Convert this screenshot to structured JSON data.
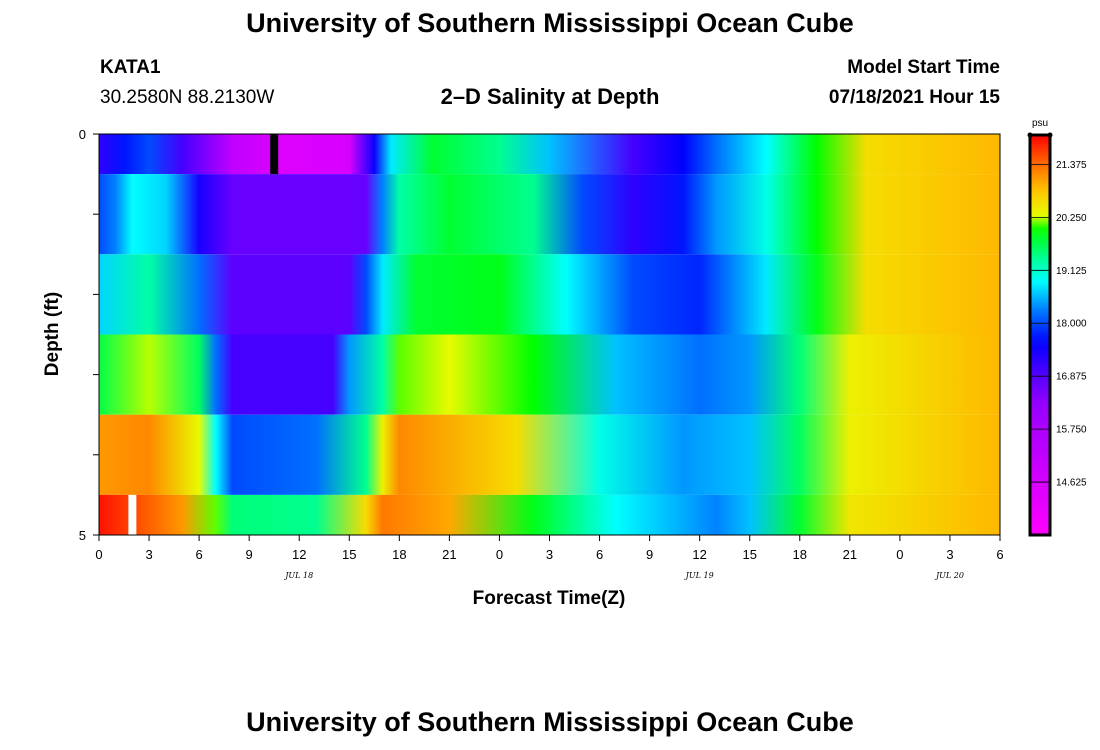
{
  "header": {
    "title": "University of Southern Mississippi Ocean Cube",
    "station": "KATA1",
    "coords": "30.2580N  88.2130W",
    "subtitle": "2–D Salinity at Depth",
    "model_label": "Model Start Time",
    "model_time": "07/18/2021 Hour 15"
  },
  "footer": {
    "title": "University of Southern Mississippi Ocean Cube"
  },
  "chart_data": {
    "type": "heatmap",
    "xlabel": "Forecast Time(Z)",
    "ylabel": "Depth (ft)",
    "x_tick_labels": [
      "0",
      "3",
      "6",
      "9",
      "12",
      "15",
      "18",
      "21",
      "0",
      "3",
      "6",
      "9",
      "12",
      "15",
      "18",
      "21",
      "0",
      "3",
      "6"
    ],
    "x_date_labels": [
      {
        "label": "JUL 18",
        "hour": 12
      },
      {
        "label": "JUL 19",
        "hour": 36
      },
      {
        "label": "JUL 20",
        "hour": 51
      }
    ],
    "x_range_hours": [
      0,
      54
    ],
    "y_tick_labels": [
      "0",
      "5"
    ],
    "ylim": [
      0,
      5
    ],
    "y_levels": 5,
    "colorbar": {
      "unit": "psu",
      "min": 13.5,
      "max": 22.0,
      "tick_values": [
        "21.375",
        "20.250",
        "19.125",
        "18.000",
        "16.875",
        "15.750",
        "14.625"
      ]
    },
    "band_bounds_ft": [
      0,
      0.5,
      1.5,
      2.5,
      3.5,
      4.5,
      5
    ],
    "bands": [
      {
        "depth_ft": 0,
        "knots": [
          [
            0,
            17.2
          ],
          [
            1.5,
            17.7
          ],
          [
            3,
            18.0
          ],
          [
            5,
            17.0
          ],
          [
            8,
            15.2
          ],
          [
            11,
            14.4
          ],
          [
            15,
            14.6
          ],
          [
            16.5,
            17.5
          ],
          [
            17.5,
            18.8
          ],
          [
            20,
            19.8
          ],
          [
            24,
            19.4
          ],
          [
            27,
            18.6
          ],
          [
            32,
            17.0
          ],
          [
            35,
            17.6
          ],
          [
            37,
            18.2
          ],
          [
            40,
            18.9
          ],
          [
            43,
            20.0
          ],
          [
            46,
            20.6
          ],
          [
            54,
            20.9
          ]
        ]
      },
      {
        "depth_ft": 1,
        "knots": [
          [
            0,
            18.0
          ],
          [
            1,
            18.3
          ],
          [
            2,
            18.9
          ],
          [
            4,
            18.7
          ],
          [
            6,
            17.4
          ],
          [
            8,
            16.7
          ],
          [
            16,
            16.7
          ],
          [
            17,
            18.3
          ],
          [
            18,
            19.3
          ],
          [
            21,
            19.8
          ],
          [
            26,
            19.4
          ],
          [
            29,
            18.0
          ],
          [
            32,
            17.2
          ],
          [
            35,
            17.7
          ],
          [
            37,
            18.4
          ],
          [
            40,
            19.0
          ],
          [
            43,
            20.0
          ],
          [
            46,
            20.6
          ],
          [
            54,
            20.9
          ]
        ]
      },
      {
        "depth_ft": 2,
        "knots": [
          [
            0,
            18.7
          ],
          [
            3,
            19.3
          ],
          [
            6,
            18.2
          ],
          [
            8,
            16.8
          ],
          [
            15,
            16.8
          ],
          [
            16,
            18.0
          ],
          [
            17,
            18.8
          ],
          [
            19,
            19.8
          ],
          [
            24,
            19.9
          ],
          [
            28,
            18.9
          ],
          [
            32,
            18.0
          ],
          [
            36,
            17.8
          ],
          [
            40,
            18.8
          ],
          [
            43,
            19.9
          ],
          [
            46,
            20.6
          ],
          [
            54,
            20.9
          ]
        ]
      },
      {
        "depth_ft": 3,
        "knots": [
          [
            0,
            19.7
          ],
          [
            3,
            20.2
          ],
          [
            6,
            19.6
          ],
          [
            7,
            18.2
          ],
          [
            8,
            17.0
          ],
          [
            14,
            17.0
          ],
          [
            15,
            18.4
          ],
          [
            17,
            19.3
          ],
          [
            18,
            20.1
          ],
          [
            21,
            20.3
          ],
          [
            26,
            20.0
          ],
          [
            31,
            18.6
          ],
          [
            36,
            18.2
          ],
          [
            39,
            18.4
          ],
          [
            42,
            19.5
          ],
          [
            45,
            20.4
          ],
          [
            54,
            20.9
          ]
        ]
      },
      {
        "depth_ft": 4,
        "knots": [
          [
            0,
            21.1
          ],
          [
            3,
            21.2
          ],
          [
            6,
            20.3
          ],
          [
            7,
            18.9
          ],
          [
            8,
            18.0
          ],
          [
            13,
            18.2
          ],
          [
            16,
            19.4
          ],
          [
            17,
            20.4
          ],
          [
            18,
            21.2
          ],
          [
            25,
            20.6
          ],
          [
            30,
            19.0
          ],
          [
            35,
            18.4
          ],
          [
            39,
            18.6
          ],
          [
            42,
            19.6
          ],
          [
            45,
            20.4
          ],
          [
            54,
            20.9
          ]
        ]
      },
      {
        "depth_ft": 5,
        "knots": [
          [
            0,
            21.9
          ],
          [
            2,
            21.6
          ],
          [
            5,
            21.1
          ],
          [
            7,
            20.1
          ],
          [
            8,
            19.5
          ],
          [
            13,
            19.4
          ],
          [
            16,
            20.6
          ],
          [
            17,
            21.3
          ],
          [
            21,
            21.0
          ],
          [
            26,
            19.9
          ],
          [
            31,
            18.9
          ],
          [
            37,
            18.3
          ],
          [
            39,
            18.6
          ],
          [
            42,
            19.8
          ],
          [
            45,
            20.5
          ],
          [
            54,
            20.9
          ]
        ]
      }
    ],
    "marks": [
      {
        "depth_ft": 0,
        "hour": 10.5,
        "color": "#000000"
      },
      {
        "depth_ft": 5,
        "hour": 2.0,
        "color": "#ffffff"
      }
    ]
  }
}
